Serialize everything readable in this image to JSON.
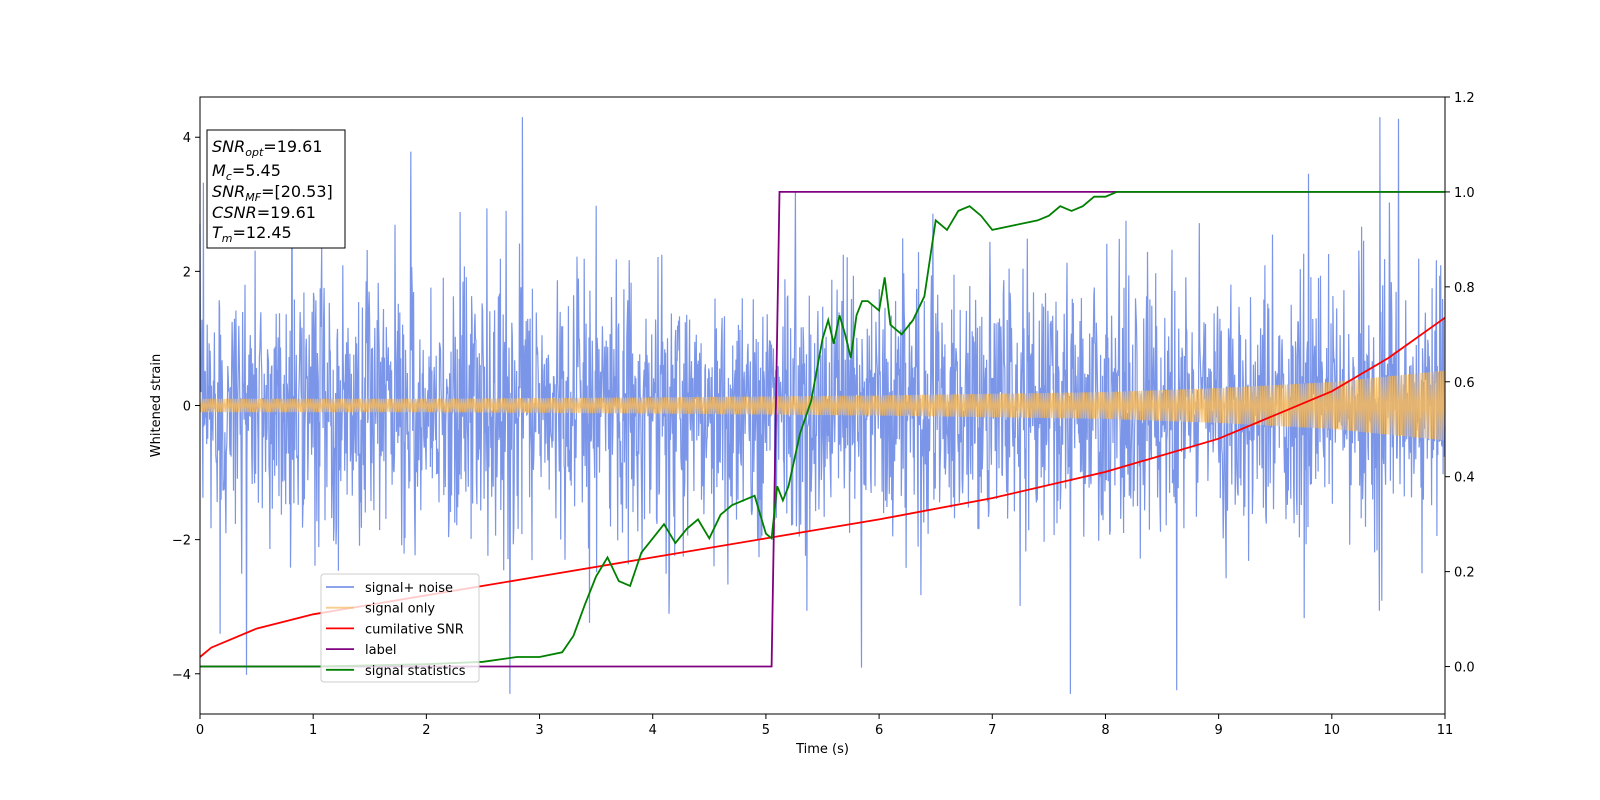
{
  "chart_data": {
    "type": "line",
    "xlabel": "Time (s)",
    "ylabel": "Whitened strain",
    "xlim": [
      0,
      11
    ],
    "ylim_left": [
      -4.6,
      4.6
    ],
    "ylim_right": [
      -0.1,
      1.2
    ],
    "x_ticks": [
      "0",
      "1",
      "2",
      "3",
      "4",
      "5",
      "6",
      "7",
      "8",
      "9",
      "10",
      "11"
    ],
    "y_ticks_left": [
      "−4",
      "−2",
      "0",
      "2",
      "4"
    ],
    "y_ticks_right": [
      "0.0",
      "0.2",
      "0.4",
      "0.6",
      "0.8",
      "1.0",
      "1.2"
    ],
    "annotation": {
      "snr_opt": {
        "sym": "SNR",
        "sub": "opt",
        "val": "=19.61"
      },
      "mc": {
        "sym": "M",
        "sub": "c",
        "val": "=5.45"
      },
      "snr_mf": {
        "sym": "SNR",
        "sub": "MF",
        "val": "=[20.53]"
      },
      "csnr": {
        "sym": "CSNR",
        "sub": "",
        "val": "=19.61"
      },
      "tm": {
        "sym": "T",
        "sub": "m",
        "val": "=12.45"
      }
    },
    "legend": {
      "noise": "signal+ noise",
      "signal": "signal only",
      "csnr": "cumilative SNR",
      "label": "label",
      "stats": "signal statistics"
    },
    "colors": {
      "noise": "#7b96e8",
      "signal": "#f5b95c",
      "csnr": "#ff0000",
      "label": "#800080",
      "stats": "#008000"
    },
    "series": [
      {
        "name": "signal+ noise",
        "axis": "left",
        "description_amplitude_sigma": 1.0,
        "x_range": [
          0,
          11
        ]
      },
      {
        "name": "signal only",
        "axis": "left",
        "envelope": {
          "x": [
            0,
            2,
            4,
            6,
            8,
            9,
            10,
            11
          ],
          "amp": [
            0.1,
            0.1,
            0.12,
            0.15,
            0.2,
            0.26,
            0.35,
            0.52
          ]
        }
      },
      {
        "name": "cumilative SNR",
        "axis": "right",
        "x": [
          0,
          0.1,
          0.5,
          1,
          2,
          3,
          4,
          5,
          6,
          7,
          8,
          9,
          10,
          10.5,
          11
        ],
        "y": [
          0.02,
          0.04,
          0.08,
          0.11,
          0.15,
          0.19,
          0.23,
          0.27,
          0.31,
          0.355,
          0.41,
          0.48,
          0.58,
          0.65,
          0.735
        ]
      },
      {
        "name": "label",
        "axis": "right",
        "x": [
          0,
          5.05,
          5.12,
          11
        ],
        "y": [
          0.0,
          0.0,
          1.0,
          1.0
        ]
      },
      {
        "name": "signal statistics",
        "axis": "right",
        "x": [
          0,
          1,
          2,
          2.5,
          2.8,
          3.0,
          3.2,
          3.3,
          3.4,
          3.5,
          3.6,
          3.7,
          3.8,
          3.9,
          4.0,
          4.1,
          4.2,
          4.3,
          4.4,
          4.5,
          4.6,
          4.7,
          4.8,
          4.9,
          5.0,
          5.05,
          5.1,
          5.15,
          5.2,
          5.3,
          5.4,
          5.5,
          5.55,
          5.6,
          5.65,
          5.7,
          5.75,
          5.8,
          5.85,
          5.9,
          6.0,
          6.05,
          6.1,
          6.2,
          6.3,
          6.4,
          6.5,
          6.6,
          6.7,
          6.8,
          6.9,
          7.0,
          7.2,
          7.4,
          7.5,
          7.6,
          7.7,
          7.8,
          7.9,
          8.0,
          8.1,
          8.2,
          8.5,
          9.0,
          10.0,
          11.0
        ],
        "y": [
          0.0,
          0.0,
          0.005,
          0.01,
          0.02,
          0.02,
          0.03,
          0.065,
          0.13,
          0.19,
          0.23,
          0.18,
          0.17,
          0.24,
          0.27,
          0.3,
          0.26,
          0.29,
          0.31,
          0.27,
          0.32,
          0.34,
          0.35,
          0.36,
          0.28,
          0.27,
          0.38,
          0.35,
          0.38,
          0.49,
          0.56,
          0.69,
          0.73,
          0.68,
          0.74,
          0.7,
          0.65,
          0.74,
          0.77,
          0.77,
          0.75,
          0.82,
          0.72,
          0.7,
          0.73,
          0.78,
          0.94,
          0.92,
          0.96,
          0.97,
          0.95,
          0.92,
          0.93,
          0.94,
          0.95,
          0.97,
          0.96,
          0.97,
          0.99,
          0.99,
          1.0,
          1.0,
          1.0,
          1.0,
          1.0,
          1.0
        ]
      }
    ]
  }
}
